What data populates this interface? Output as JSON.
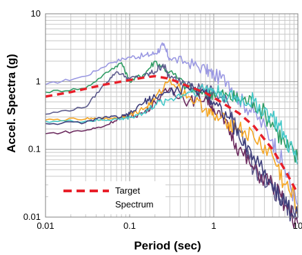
{
  "chart_data": {
    "type": "line",
    "x_scale": "log",
    "y_scale": "log",
    "xlim": [
      0.01,
      10
    ],
    "ylim": [
      0.01,
      10
    ],
    "xlabel": "Period (sec)",
    "ylabel": "Accel. Spectra (g)",
    "x_ticks": [
      "0.01",
      "0.1",
      "1",
      "10"
    ],
    "y_ticks": [
      "0.01",
      "0.1",
      "1",
      "10"
    ],
    "grid": true,
    "legend_placement": "bottom-left",
    "legend": {
      "label_line1": "Target",
      "label_line2": "Spectrum"
    },
    "target": {
      "name": "Target Spectrum",
      "color": "#e8202a",
      "x": [
        0.01,
        0.02,
        0.05,
        0.1,
        0.15,
        0.2,
        0.3,
        0.5,
        0.8,
        1,
        2,
        3,
        5,
        7,
        10
      ],
      "y": [
        0.6,
        0.7,
        0.9,
        1.05,
        1.15,
        1.2,
        1.1,
        0.85,
        0.68,
        0.58,
        0.34,
        0.22,
        0.1,
        0.05,
        0.022
      ]
    },
    "records": [
      {
        "color": "#9a98e2",
        "x": [
          0.01,
          0.03,
          0.06,
          0.1,
          0.15,
          0.2,
          0.25,
          0.3,
          0.5,
          0.8,
          1,
          1.5,
          2,
          3,
          5,
          7,
          10
        ],
        "y": [
          0.9,
          1.2,
          1.9,
          2.3,
          2.4,
          2.6,
          3.4,
          2.2,
          1.9,
          1.5,
          1.25,
          1.0,
          0.55,
          0.35,
          0.14,
          0.05,
          0.015
        ]
      },
      {
        "color": "#2e9c63",
        "x": [
          0.01,
          0.03,
          0.06,
          0.08,
          0.1,
          0.15,
          0.2,
          0.3,
          0.5,
          0.8,
          1,
          1.5,
          2,
          3,
          5,
          7,
          10
        ],
        "y": [
          0.7,
          0.8,
          1.5,
          1.9,
          1.0,
          1.3,
          2.0,
          1.4,
          0.8,
          0.6,
          0.7,
          0.6,
          0.55,
          0.5,
          0.25,
          0.12,
          0.07
        ]
      },
      {
        "color": "#5c5a8c",
        "x": [
          0.01,
          0.03,
          0.05,
          0.07,
          0.1,
          0.15,
          0.2,
          0.25,
          0.3,
          0.5,
          0.8,
          1,
          1.5,
          2,
          3,
          5,
          7,
          10
        ],
        "y": [
          0.33,
          0.42,
          0.9,
          1.4,
          1.1,
          1.2,
          1.4,
          1.8,
          1.1,
          1.0,
          0.75,
          0.7,
          0.45,
          0.2,
          0.05,
          0.025,
          0.015,
          0.01
        ]
      },
      {
        "color": "#6b2a5e",
        "x": [
          0.01,
          0.03,
          0.05,
          0.08,
          0.1,
          0.15,
          0.2,
          0.3,
          0.5,
          0.8,
          1,
          1.5,
          2,
          3,
          5,
          7,
          10
        ],
        "y": [
          0.17,
          0.19,
          0.22,
          0.3,
          0.3,
          0.35,
          0.5,
          0.8,
          0.5,
          0.6,
          0.4,
          0.2,
          0.1,
          0.05,
          0.03,
          0.015,
          0.008
        ]
      },
      {
        "color": "#f5a623",
        "x": [
          0.01,
          0.03,
          0.05,
          0.08,
          0.1,
          0.15,
          0.2,
          0.3,
          0.5,
          0.8,
          1,
          1.5,
          2,
          3,
          5,
          7,
          10
        ],
        "y": [
          0.27,
          0.28,
          0.28,
          0.3,
          0.32,
          0.4,
          0.55,
          1.1,
          0.6,
          0.4,
          0.3,
          0.25,
          0.2,
          0.15,
          0.08,
          0.03,
          0.015
        ]
      },
      {
        "color": "#44c8c8",
        "x": [
          0.01,
          0.03,
          0.05,
          0.08,
          0.1,
          0.15,
          0.2,
          0.3,
          0.5,
          0.8,
          1,
          1.5,
          2,
          3,
          5,
          7,
          10
        ],
        "y": [
          0.26,
          0.26,
          0.27,
          0.28,
          0.3,
          0.35,
          0.45,
          0.55,
          0.7,
          0.8,
          0.75,
          0.6,
          0.55,
          0.5,
          0.3,
          0.15,
          0.06
        ]
      },
      {
        "color": "#3d3d7a",
        "x": [
          0.01,
          0.03,
          0.05,
          0.08,
          0.1,
          0.15,
          0.2,
          0.3,
          0.5,
          0.8,
          1,
          1.5,
          2,
          3,
          5,
          7,
          10
        ],
        "y": [
          0.24,
          0.25,
          0.3,
          0.3,
          0.33,
          0.5,
          0.6,
          0.7,
          0.8,
          0.7,
          0.5,
          0.3,
          0.15,
          0.08,
          0.03,
          0.015,
          0.01
        ]
      }
    ]
  }
}
